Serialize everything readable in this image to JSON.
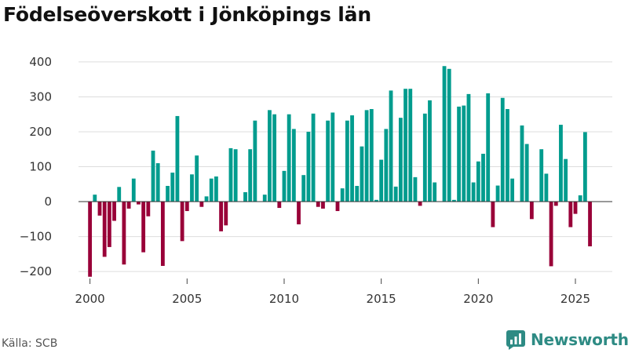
{
  "title": "Födelseöverskott i Jönköpings län",
  "source": "Källa: SCB",
  "brand": "Newsworthy",
  "colors": {
    "positive": "#009c8e",
    "negative": "#990038",
    "grid": "#dddddd",
    "brand": "#2e8b84"
  },
  "chart_data": {
    "type": "bar",
    "title": "Födelseöverskott i Jönköpings län",
    "xlabel": "",
    "ylabel": "",
    "frequency": "quarterly",
    "x_start": 2000.0,
    "x_step": 0.25,
    "xlim": [
      1998.6,
      2026.9
    ],
    "ylim": [
      -220,
      420
    ],
    "yticks": [
      -200,
      -100,
      0,
      100,
      200,
      300,
      400
    ],
    "ytick_labels": [
      "−200",
      "−100",
      "0",
      "100",
      "200",
      "300",
      "400"
    ],
    "xticks": [
      2000,
      2005,
      2010,
      2015,
      2020,
      2025
    ],
    "xtick_labels": [
      "2000",
      "2005",
      "2010",
      "2015",
      "2020",
      "2025"
    ],
    "values": [
      -215,
      20,
      -40,
      -158,
      -130,
      -55,
      42,
      -180,
      -20,
      66,
      -8,
      -145,
      -42,
      146,
      110,
      -184,
      45,
      83,
      245,
      -113,
      -27,
      78,
      132,
      -15,
      15,
      66,
      72,
      -85,
      -68,
      153,
      150,
      0,
      27,
      150,
      232,
      0,
      20,
      262,
      250,
      -18,
      88,
      250,
      208,
      -65,
      76,
      200,
      252,
      -15,
      -20,
      232,
      255,
      -27,
      38,
      232,
      247,
      45,
      158,
      262,
      265,
      5,
      120,
      208,
      318,
      43,
      240,
      323,
      323,
      70,
      -12,
      252,
      290,
      55,
      0,
      388,
      380,
      5,
      272,
      275,
      308,
      55,
      115,
      137,
      310,
      -73,
      46,
      297,
      265,
      66,
      0,
      218,
      165,
      -50,
      0,
      150,
      80,
      -185,
      -12,
      220,
      122,
      -73,
      -35,
      18,
      199,
      -128
    ]
  }
}
